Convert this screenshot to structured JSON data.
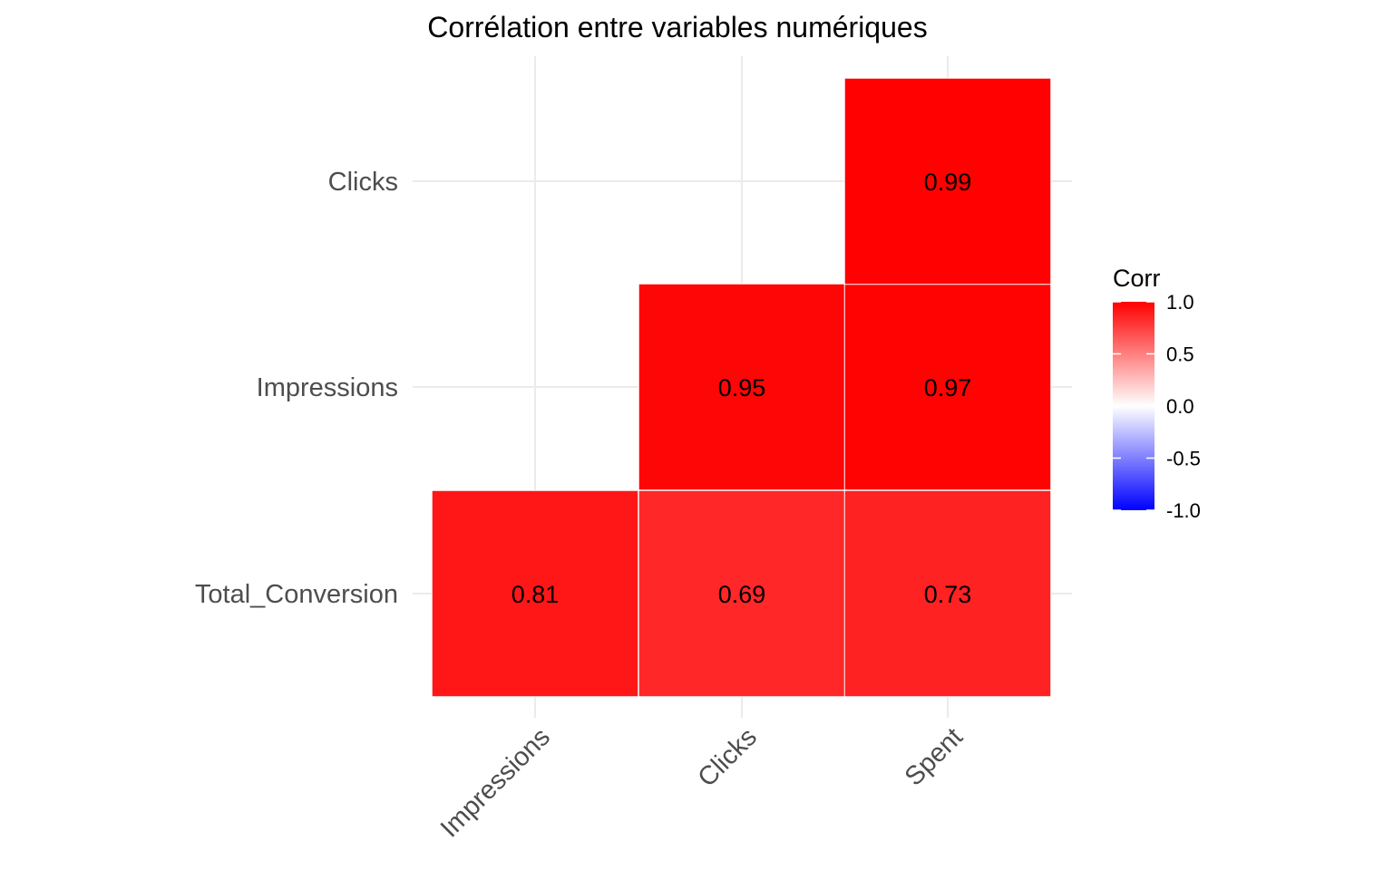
{
  "chart_data": {
    "type": "heatmap",
    "title": "Corrélation entre variables numériques",
    "x_categories": [
      "Impressions",
      "Clicks",
      "Spent"
    ],
    "y_categories": [
      "Total_Conversion",
      "Impressions",
      "Clicks"
    ],
    "cells": [
      {
        "x": "Impressions",
        "y": "Total_Conversion",
        "value": 0.81,
        "label": "0.81"
      },
      {
        "x": "Clicks",
        "y": "Total_Conversion",
        "value": 0.69,
        "label": "0.69"
      },
      {
        "x": "Spent",
        "y": "Total_Conversion",
        "value": 0.73,
        "label": "0.73"
      },
      {
        "x": "Clicks",
        "y": "Impressions",
        "value": 0.95,
        "label": "0.95"
      },
      {
        "x": "Spent",
        "y": "Impressions",
        "value": 0.97,
        "label": "0.97"
      },
      {
        "x": "Spent",
        "y": "Clicks",
        "value": 0.99,
        "label": "0.99"
      }
    ],
    "legend": {
      "title": "Corr",
      "placement": "right",
      "range": [
        -1,
        1
      ],
      "ticks": [
        "1.0",
        "0.5",
        "0.0",
        "-0.5",
        "-1.0"
      ],
      "low_color": "#0000ff",
      "mid_color": "#ffffff",
      "high_color": "#ff0000"
    },
    "grid": true
  }
}
